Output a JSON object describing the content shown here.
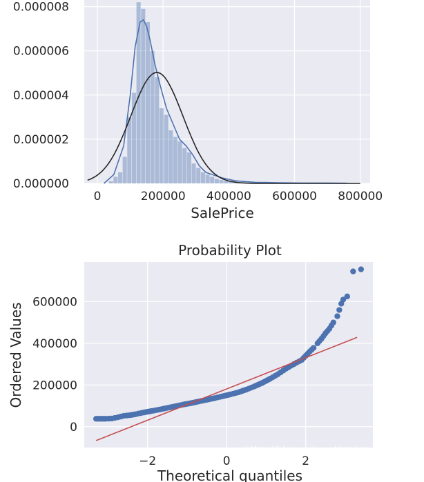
{
  "colors": {
    "panel_bg": "#EAEAF2",
    "grid": "#FFFFFF",
    "hist_fill": "#4C72B0",
    "kde_line": "#4C72B0",
    "norm_line": "#262626",
    "scatter": "#4C72B0",
    "fit_line": "#C44E52",
    "text": "#262626"
  },
  "chart_data": [
    {
      "type": "bar",
      "subtype": "histogram-with-density",
      "title": "",
      "xlabel": "SalePrice",
      "ylabel": "",
      "xlim": [
        -40000,
        830000
      ],
      "ylim": [
        0,
        8.3e-06
      ],
      "xticks": [
        0,
        200000,
        400000,
        600000,
        800000
      ],
      "xtick_labels": [
        "0",
        "200000",
        "400000",
        "600000",
        "800000"
      ],
      "yticks": [
        0,
        2e-06,
        4e-06,
        6e-06,
        8e-06
      ],
      "ytick_labels": [
        "0.000000",
        "0.000002",
        "0.000004",
        "0.000006",
        "0.000008"
      ],
      "grid": true,
      "bin_edges_start": 34900,
      "bin_width": 14000,
      "bin_density": [
        1e-07,
        3e-07,
        5e-07,
        1.2e-06,
        3e-06,
        4.1e-06,
        8.2e-06,
        7.9e-06,
        7.3e-06,
        6e-06,
        4.8e-06,
        3.4e-06,
        3.1e-06,
        2.4e-06,
        2.1e-06,
        1.9e-06,
        1.6e-06,
        1.4e-06,
        9e-07,
        7e-07,
        5e-07,
        4e-07,
        3e-07,
        2e-07,
        1.5e-07,
        1.2e-07,
        1e-07,
        8e-08,
        6e-08,
        5e-08,
        4e-08,
        4e-08,
        3e-08,
        3e-08,
        2e-08,
        2e-08,
        2e-08,
        2e-08,
        2e-08,
        2e-08,
        2e-08,
        2e-08,
        2e-08,
        1e-08,
        1e-08,
        1e-08,
        1e-08,
        1e-08,
        1e-08,
        1e-08
      ],
      "kde": {
        "x": [
          20000,
          50000,
          80000,
          100000,
          115000,
          130000,
          140000,
          150000,
          160000,
          175000,
          190000,
          210000,
          230000,
          250000,
          270000,
          290000,
          310000,
          330000,
          350000,
          380000,
          420000,
          480000,
          550000,
          620000,
          700000,
          760000
        ],
        "y": [
          0.0,
          4e-07,
          1.7e-06,
          4e-06,
          6.2e-06,
          7.3e-06,
          7.4e-06,
          7.1e-06,
          6.5e-06,
          5.4e-06,
          4.5e-06,
          3.4e-06,
          2.7e-06,
          2e-06,
          1.7e-06,
          1.3e-06,
          8e-07,
          5e-07,
          4e-07,
          2.5e-07,
          1.2e-07,
          5e-08,
          3e-08,
          2e-08,
          2e-08,
          1e-08
        ]
      },
      "normal_fit": {
        "mean": 180921,
        "std": 79415,
        "x_range": [
          -30000,
          800000
        ]
      }
    },
    {
      "type": "scatter",
      "title": "Probability Plot",
      "xlabel": "Theoretical quantiles",
      "ylabel": "Ordered Values",
      "xlim": [
        -3.6,
        3.7
      ],
      "ylim": [
        -100000,
        790000
      ],
      "xticks": [
        -2,
        0,
        2
      ],
      "xtick_labels": [
        "−2",
        "0",
        "2"
      ],
      "yticks": [
        0,
        200000,
        400000,
        600000
      ],
      "ytick_labels": [
        "0",
        "200000",
        "400000",
        "600000"
      ],
      "grid": true,
      "points": {
        "x": [
          -3.3,
          -3.05,
          -2.9,
          -2.75,
          -2.6,
          -2.45,
          -2.3,
          -2.1,
          -1.9,
          -1.7,
          -1.5,
          -1.3,
          -1.1,
          -0.9,
          -0.7,
          -0.5,
          -0.3,
          -0.1,
          0.1,
          0.3,
          0.5,
          0.7,
          0.9,
          1.1,
          1.3,
          1.5,
          1.7,
          1.9,
          2.0,
          2.1,
          2.2,
          2.3,
          2.4,
          2.5,
          2.6,
          2.7,
          2.8,
          2.85,
          2.9,
          2.95,
          3.05,
          3.2,
          3.4
        ],
        "y": [
          37900,
          38000,
          39300,
          45000,
          52000,
          55000,
          60000,
          68000,
          75000,
          82000,
          90000,
          98000,
          106000,
          113000,
          121000,
          129000,
          137000,
          146000,
          155000,
          165000,
          178000,
          193000,
          210000,
          230000,
          252000,
          278000,
          300000,
          320000,
          340000,
          360000,
          378000,
          400000,
          422000,
          448000,
          470000,
          500000,
          530000,
          560000,
          590000,
          610000,
          625000,
          745000,
          755000
        ]
      },
      "fit_line": {
        "slope": 75000,
        "intercept": 180921,
        "x_range": [
          -3.3,
          3.3
        ]
      }
    }
  ],
  "watermark": "https://blog.csdn.net/weixin_42013825"
}
